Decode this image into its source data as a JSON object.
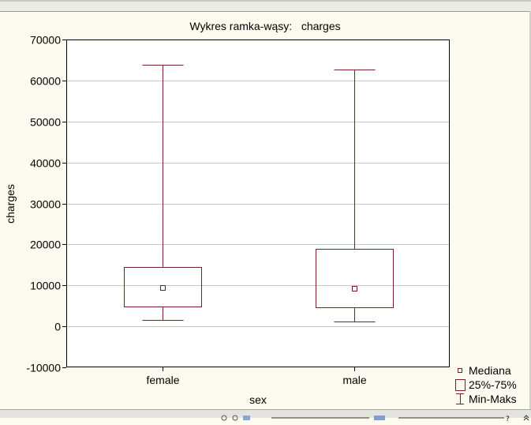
{
  "chart_data": {
    "type": "box",
    "title": "Wykres ramka-wąsy:   charges",
    "xlabel": "sex",
    "ylabel": "charges",
    "categories": [
      "female",
      "male"
    ],
    "ylim": [
      -10000,
      70000
    ],
    "yticks": [
      -10000,
      0,
      10000,
      20000,
      30000,
      40000,
      50000,
      60000,
      70000
    ],
    "grid": true,
    "boxes": [
      {
        "category": "female",
        "min": 1600,
        "q1": 4900,
        "median": 9400,
        "q3": 14500,
        "max": 63800
      },
      {
        "category": "male",
        "min": 1100,
        "q1": 4600,
        "median": 9300,
        "q3": 18900,
        "max": 62600
      }
    ],
    "legend": {
      "placement": "bottom-right",
      "items": [
        {
          "symbol": "small-square",
          "label": "Mediana"
        },
        {
          "symbol": "box",
          "label": "25%-75%"
        },
        {
          "symbol": "whisker",
          "label": "Min-Maks"
        }
      ]
    },
    "colors": {
      "series": "#7a1e28",
      "grid": "#c8c8c8",
      "background": "#fdfbf0",
      "plot": "#ffffff"
    }
  }
}
